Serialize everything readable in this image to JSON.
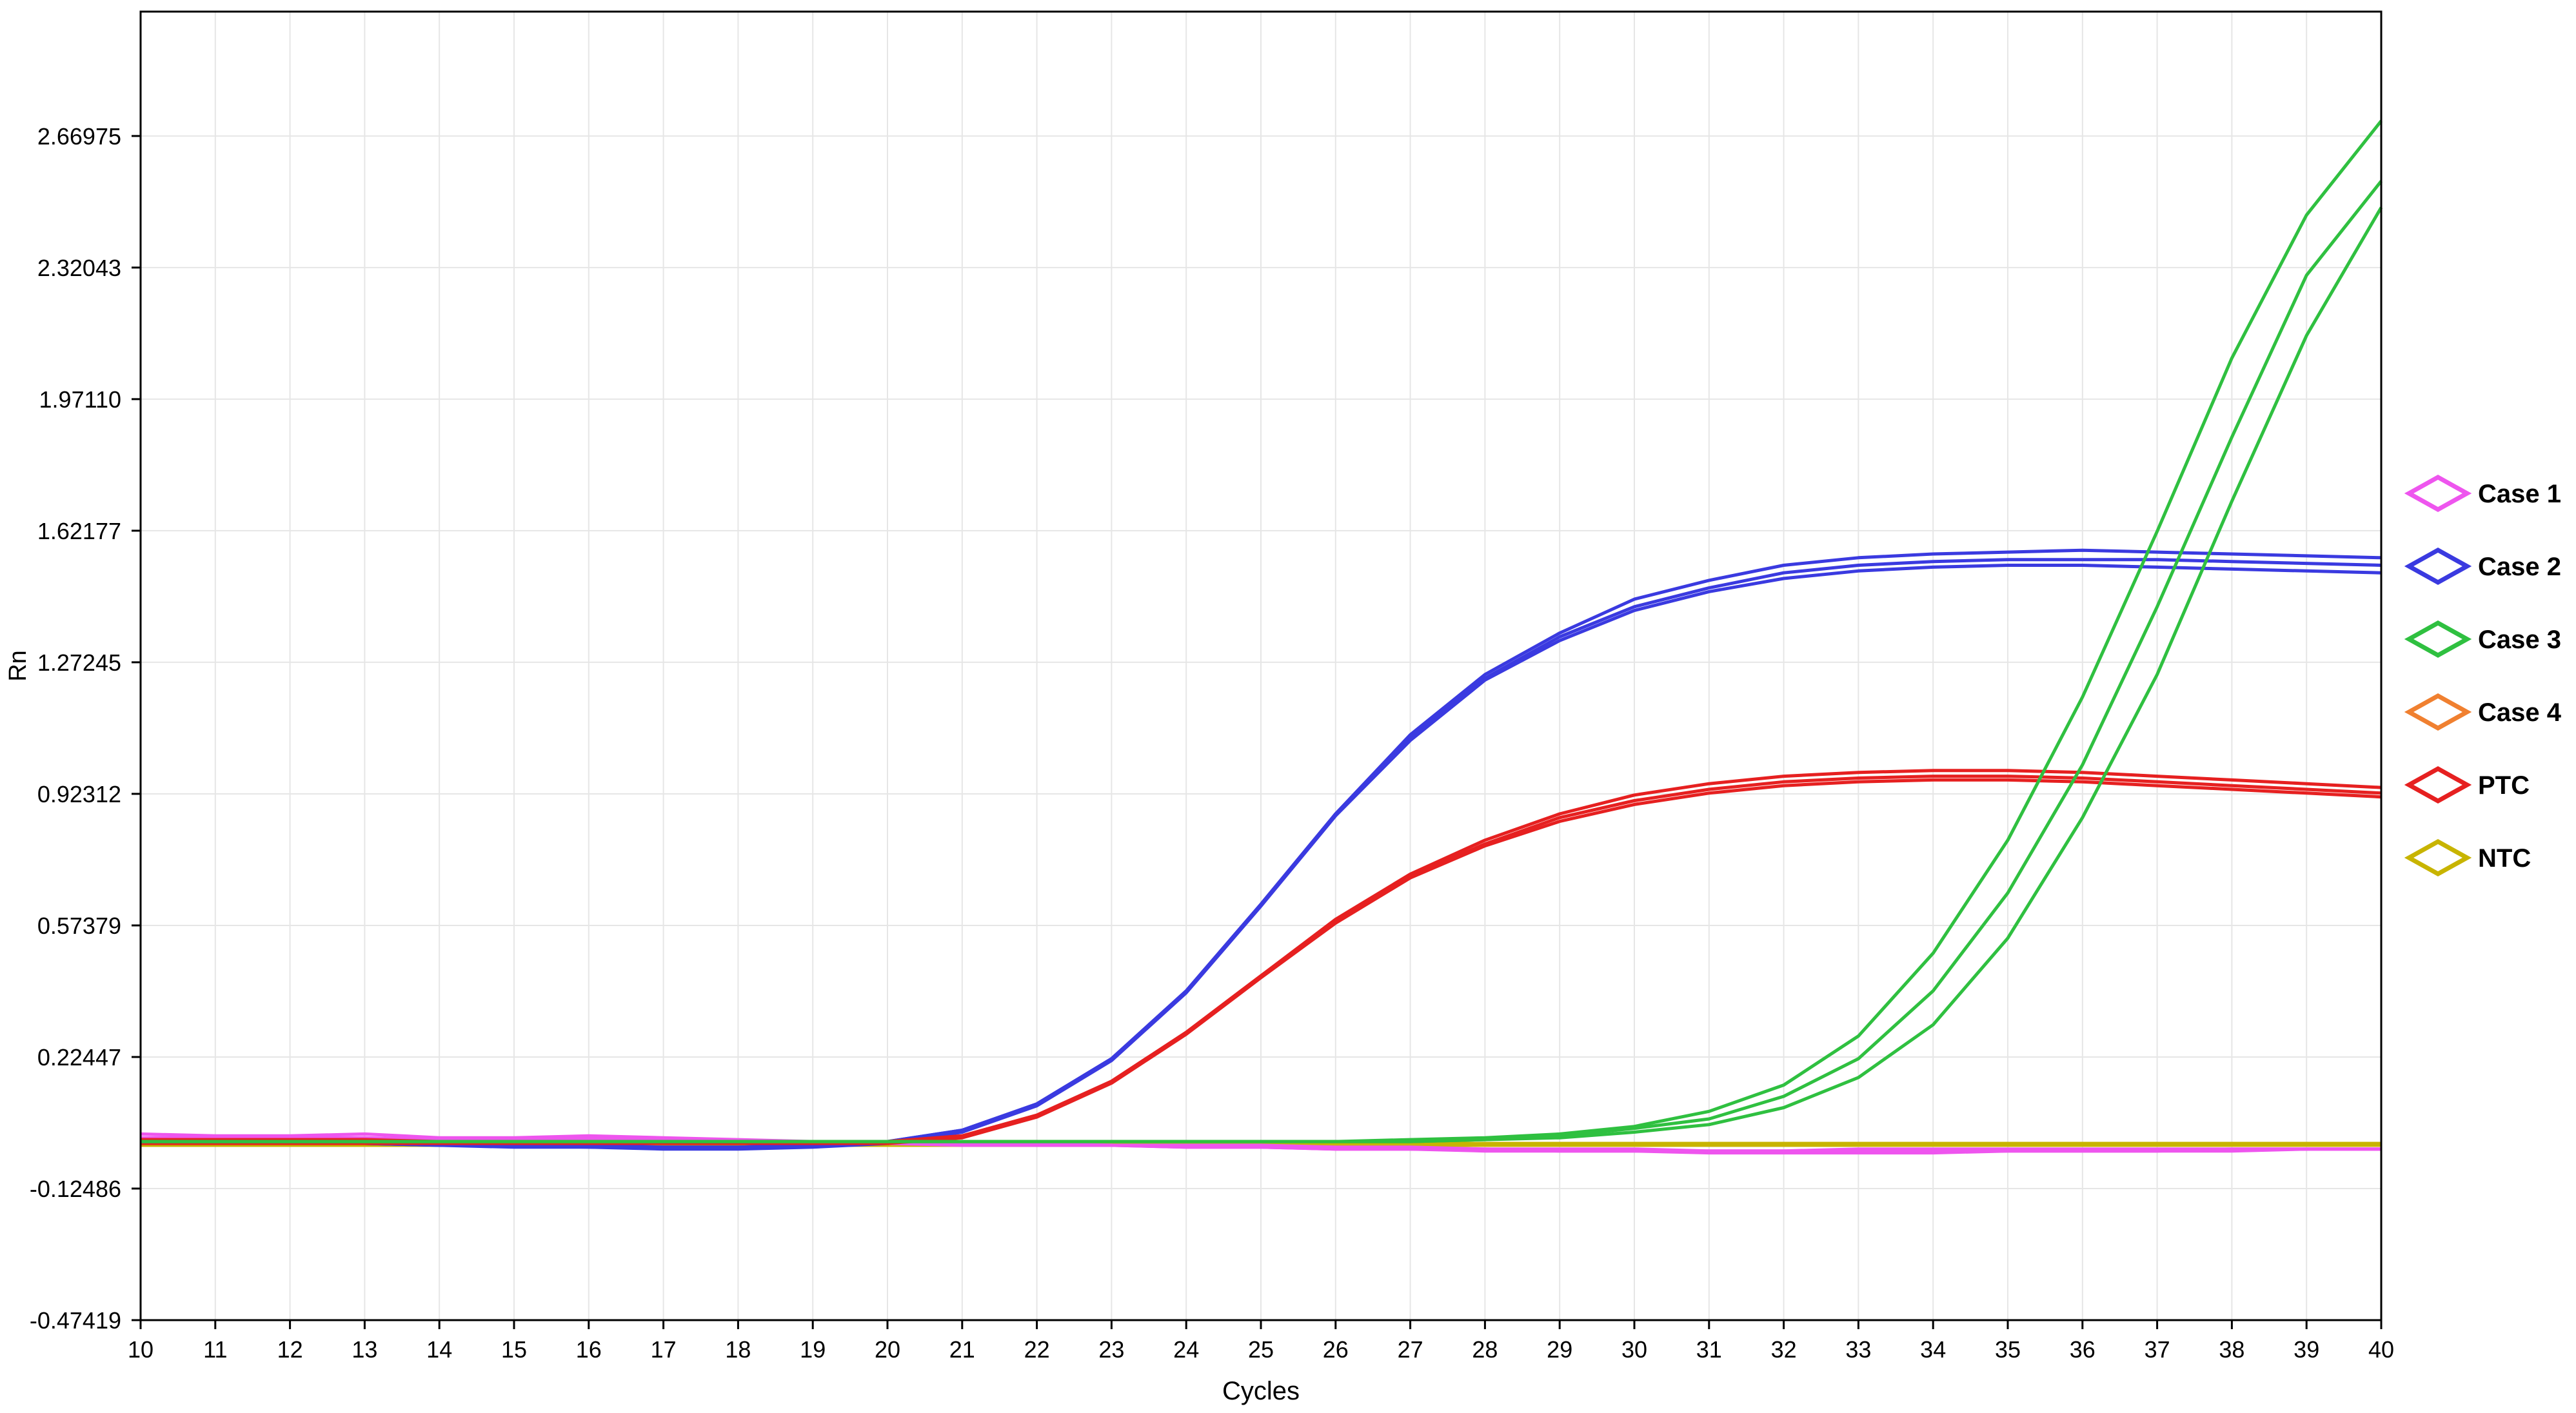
{
  "chart_data": {
    "type": "line",
    "xlabel": "Cycles",
    "ylabel": "Rn",
    "xlim": [
      10,
      40
    ],
    "ylim": [
      -0.47419,
      3.0
    ],
    "x_ticks": [
      10,
      11,
      12,
      13,
      14,
      15,
      16,
      17,
      18,
      19,
      20,
      21,
      22,
      23,
      24,
      25,
      26,
      27,
      28,
      29,
      30,
      31,
      32,
      33,
      34,
      35,
      36,
      37,
      38,
      39,
      40
    ],
    "y_ticks": [
      -0.47419,
      -0.12486,
      0.22447,
      0.57379,
      0.92312,
      1.27245,
      1.62177,
      1.9711,
      2.32043,
      2.66975
    ],
    "y_tick_labels": [
      "-0.47419",
      "-0.12486",
      "0.22447",
      "0.57379",
      "0.92312",
      "1.27245",
      "1.62177",
      "1.97110",
      "2.32043",
      "2.66975"
    ],
    "grid": true,
    "legend_position": "right",
    "legend": [
      {
        "label": "Case 1",
        "color": "#ee55ee"
      },
      {
        "label": "Case 2",
        "color": "#3a3ae0"
      },
      {
        "label": "Case 3",
        "color": "#2fc040"
      },
      {
        "label": "Case 4",
        "color": "#f08030"
      },
      {
        "label": "PTC",
        "color": "#e62020"
      },
      {
        "label": "NTC",
        "color": "#c8b400"
      }
    ],
    "x": [
      10,
      11,
      12,
      13,
      14,
      15,
      16,
      17,
      18,
      19,
      20,
      21,
      22,
      23,
      24,
      25,
      26,
      27,
      28,
      29,
      30,
      31,
      32,
      33,
      34,
      35,
      36,
      37,
      38,
      39,
      40
    ],
    "series": [
      {
        "group": "Case 4",
        "color": "#f08030",
        "values": [
          0.0,
          0.0,
          0.0,
          0.0,
          0.0,
          0.0,
          0.0,
          0.0,
          0.0,
          0.0,
          0.0,
          0.0,
          0.0,
          0.0,
          0.0,
          0.0,
          0.0,
          -0.005,
          -0.005,
          -0.005,
          -0.005,
          -0.005,
          -0.005,
          -0.005,
          -0.005,
          -0.005,
          -0.005,
          -0.005,
          -0.005,
          -0.005,
          -0.005
        ]
      },
      {
        "group": "NTC",
        "color": "#c8b400",
        "values": [
          -0.005,
          -0.005,
          -0.005,
          -0.005,
          -0.005,
          -0.005,
          -0.005,
          -0.005,
          -0.005,
          -0.005,
          -0.005,
          -0.005,
          -0.005,
          -0.005,
          -0.005,
          -0.005,
          -0.005,
          -0.005,
          -0.005,
          -0.005,
          -0.005,
          -0.005,
          -0.005,
          -0.005,
          -0.005,
          -0.005,
          -0.005,
          -0.005,
          -0.005,
          -0.005,
          -0.005
        ]
      },
      {
        "group": "NTC",
        "color": "#c8b400",
        "values": [
          -0.01,
          -0.01,
          -0.01,
          -0.01,
          -0.01,
          -0.01,
          -0.01,
          -0.01,
          -0.01,
          -0.01,
          -0.01,
          -0.01,
          -0.01,
          -0.01,
          -0.01,
          -0.01,
          -0.01,
          -0.01,
          -0.01,
          -0.01,
          -0.01,
          -0.01,
          -0.01,
          -0.01,
          -0.01,
          -0.01,
          -0.01,
          -0.01,
          -0.01,
          -0.01,
          -0.01
        ]
      },
      {
        "group": "Case 1",
        "color": "#ee55ee",
        "values": [
          0.02,
          0.015,
          0.015,
          0.02,
          0.01,
          0.01,
          0.015,
          0.01,
          0.005,
          0.0,
          0.0,
          -0.005,
          -0.005,
          -0.01,
          -0.01,
          -0.01,
          -0.015,
          -0.015,
          -0.02,
          -0.02,
          -0.02,
          -0.025,
          -0.025,
          -0.02,
          -0.02,
          -0.02,
          -0.02,
          -0.02,
          -0.02,
          -0.02,
          -0.02
        ]
      },
      {
        "group": "Case 1",
        "color": "#ee55ee",
        "values": [
          0.01,
          0.01,
          0.01,
          0.01,
          0.005,
          0.005,
          0.005,
          0.005,
          0.0,
          0.0,
          -0.005,
          -0.005,
          -0.01,
          -0.01,
          -0.015,
          -0.015,
          -0.02,
          -0.02,
          -0.025,
          -0.025,
          -0.025,
          -0.03,
          -0.03,
          -0.03,
          -0.03,
          -0.025,
          -0.025,
          -0.025,
          -0.025,
          -0.02,
          -0.02
        ]
      },
      {
        "group": "Case 1",
        "color": "#ee55ee",
        "values": [
          0.005,
          0.005,
          0.005,
          0.01,
          0.0,
          0.005,
          0.01,
          0.0,
          0.0,
          -0.005,
          -0.005,
          -0.01,
          -0.01,
          -0.01,
          -0.015,
          -0.015,
          -0.02,
          -0.02,
          -0.02,
          -0.025,
          -0.025,
          -0.025,
          -0.025,
          -0.025,
          -0.025,
          -0.025,
          -0.025,
          -0.025,
          -0.02,
          -0.02,
          -0.02
        ]
      },
      {
        "group": "Case 2",
        "color": "#3a3ae0",
        "values": [
          0.0,
          0.0,
          0.0,
          0.0,
          -0.005,
          -0.01,
          -0.01,
          -0.015,
          -0.015,
          -0.01,
          0.0,
          0.03,
          0.1,
          0.22,
          0.4,
          0.63,
          0.87,
          1.08,
          1.24,
          1.35,
          1.44,
          1.49,
          1.53,
          1.55,
          1.56,
          1.565,
          1.57,
          1.565,
          1.56,
          1.555,
          1.55
        ]
      },
      {
        "group": "Case 2",
        "color": "#3a3ae0",
        "values": [
          0.0,
          0.0,
          0.0,
          -0.005,
          -0.01,
          -0.01,
          -0.015,
          -0.015,
          -0.015,
          -0.01,
          0.0,
          0.03,
          0.1,
          0.22,
          0.4,
          0.63,
          0.87,
          1.07,
          1.23,
          1.34,
          1.42,
          1.47,
          1.51,
          1.53,
          1.54,
          1.545,
          1.545,
          1.545,
          1.54,
          1.535,
          1.53
        ]
      },
      {
        "group": "Case 2",
        "color": "#3a3ae0",
        "values": [
          -0.005,
          -0.005,
          -0.005,
          -0.005,
          -0.01,
          -0.015,
          -0.015,
          -0.02,
          -0.02,
          -0.015,
          -0.005,
          0.025,
          0.095,
          0.215,
          0.395,
          0.625,
          0.865,
          1.065,
          1.225,
          1.33,
          1.41,
          1.46,
          1.495,
          1.515,
          1.525,
          1.53,
          1.53,
          1.525,
          1.52,
          1.515,
          1.51
        ]
      },
      {
        "group": "PTC",
        "color": "#e62020",
        "values": [
          0.005,
          0.005,
          0.005,
          0.005,
          0.0,
          0.0,
          0.0,
          0.0,
          0.0,
          0.0,
          0.0,
          0.015,
          0.07,
          0.16,
          0.29,
          0.44,
          0.59,
          0.71,
          0.8,
          0.87,
          0.92,
          0.95,
          0.97,
          0.98,
          0.985,
          0.985,
          0.98,
          0.97,
          0.96,
          0.95,
          0.94
        ]
      },
      {
        "group": "PTC",
        "color": "#e62020",
        "values": [
          0.0,
          0.0,
          0.0,
          0.0,
          0.0,
          0.0,
          0.0,
          0.0,
          0.0,
          0.0,
          0.0,
          0.015,
          0.07,
          0.16,
          0.29,
          0.44,
          0.585,
          0.705,
          0.79,
          0.86,
          0.905,
          0.935,
          0.955,
          0.965,
          0.97,
          0.97,
          0.965,
          0.955,
          0.945,
          0.935,
          0.925
        ]
      },
      {
        "group": "PTC",
        "color": "#e62020",
        "values": [
          -0.005,
          -0.005,
          -0.005,
          -0.005,
          -0.005,
          -0.005,
          -0.005,
          -0.005,
          -0.005,
          -0.005,
          -0.005,
          0.01,
          0.065,
          0.155,
          0.285,
          0.435,
          0.58,
          0.7,
          0.785,
          0.85,
          0.895,
          0.925,
          0.945,
          0.955,
          0.96,
          0.96,
          0.955,
          0.945,
          0.935,
          0.925,
          0.915
        ]
      },
      {
        "group": "Case 3",
        "color": "#2fc040",
        "values": [
          0.0,
          0.0,
          0.0,
          0.0,
          0.0,
          0.0,
          0.0,
          0.0,
          0.0,
          0.0,
          0.0,
          0.0,
          0.0,
          0.0,
          0.0,
          0.0,
          0.0,
          0.005,
          0.01,
          0.02,
          0.04,
          0.08,
          0.15,
          0.28,
          0.5,
          0.8,
          1.18,
          1.62,
          2.08,
          2.46,
          2.71
        ]
      },
      {
        "group": "Case 3",
        "color": "#2fc040",
        "values": [
          0.0,
          0.0,
          0.0,
          0.0,
          0.0,
          0.0,
          0.0,
          0.0,
          0.0,
          0.0,
          0.0,
          0.0,
          0.0,
          0.0,
          0.0,
          0.0,
          0.0,
          0.0,
          0.005,
          0.015,
          0.035,
          0.06,
          0.12,
          0.22,
          0.4,
          0.66,
          1.0,
          1.42,
          1.87,
          2.3,
          2.55
        ]
      },
      {
        "group": "Case 3",
        "color": "#2fc040",
        "values": [
          0.0,
          0.0,
          0.0,
          0.0,
          0.0,
          0.0,
          0.0,
          0.0,
          0.0,
          0.0,
          0.0,
          0.0,
          0.0,
          0.0,
          0.0,
          0.0,
          0.0,
          0.0,
          0.005,
          0.01,
          0.025,
          0.045,
          0.09,
          0.17,
          0.31,
          0.54,
          0.86,
          1.24,
          1.7,
          2.14,
          2.48
        ]
      }
    ]
  }
}
